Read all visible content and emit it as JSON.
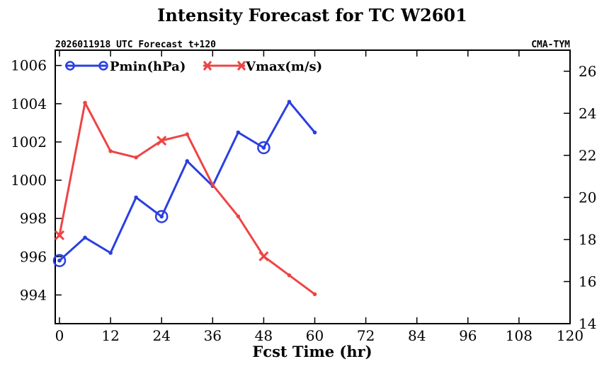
{
  "chart_data": {
    "type": "line",
    "title": "Intensity Forecast for TC W2601",
    "subtitle_left": "2026011918 UTC Forecast t+120",
    "subtitle_right": "CMA-TYM",
    "xlabel": "Fcst Time (hr)",
    "xlim": [
      -1,
      120
    ],
    "xticks": [
      0,
      12,
      24,
      36,
      48,
      60,
      72,
      84,
      96,
      108,
      120
    ],
    "y_left": {
      "ylim": [
        992.5,
        1006.8
      ],
      "ticks": [
        994,
        996,
        998,
        1000,
        1002,
        1004,
        1006
      ]
    },
    "y_right": {
      "ylim": [
        14,
        27
      ],
      "ticks": [
        14,
        16,
        18,
        20,
        22,
        24,
        26
      ]
    },
    "legend": [
      "Pmin(hPa)",
      "Vmax(m/s)"
    ],
    "series": [
      {
        "name": "Pmin(hPa)",
        "axis": "left",
        "color": "#2a3fe0",
        "marker": "circle",
        "x": [
          0,
          6,
          12,
          18,
          24,
          30,
          36,
          42,
          48,
          54,
          60
        ],
        "values": [
          995.8,
          997.0,
          996.2,
          999.1,
          998.1,
          1001.0,
          999.7,
          1002.5,
          1001.7,
          1004.1,
          1002.5
        ]
      },
      {
        "name": "Vmax(m/s)",
        "axis": "right",
        "color": "#ee4444",
        "marker": "x",
        "x": [
          0,
          6,
          12,
          18,
          24,
          30,
          36,
          42,
          48,
          54,
          60
        ],
        "values": [
          18.2,
          24.5,
          22.2,
          21.9,
          22.7,
          23.0,
          20.6,
          19.1,
          17.2,
          16.3,
          15.4
        ]
      }
    ]
  }
}
